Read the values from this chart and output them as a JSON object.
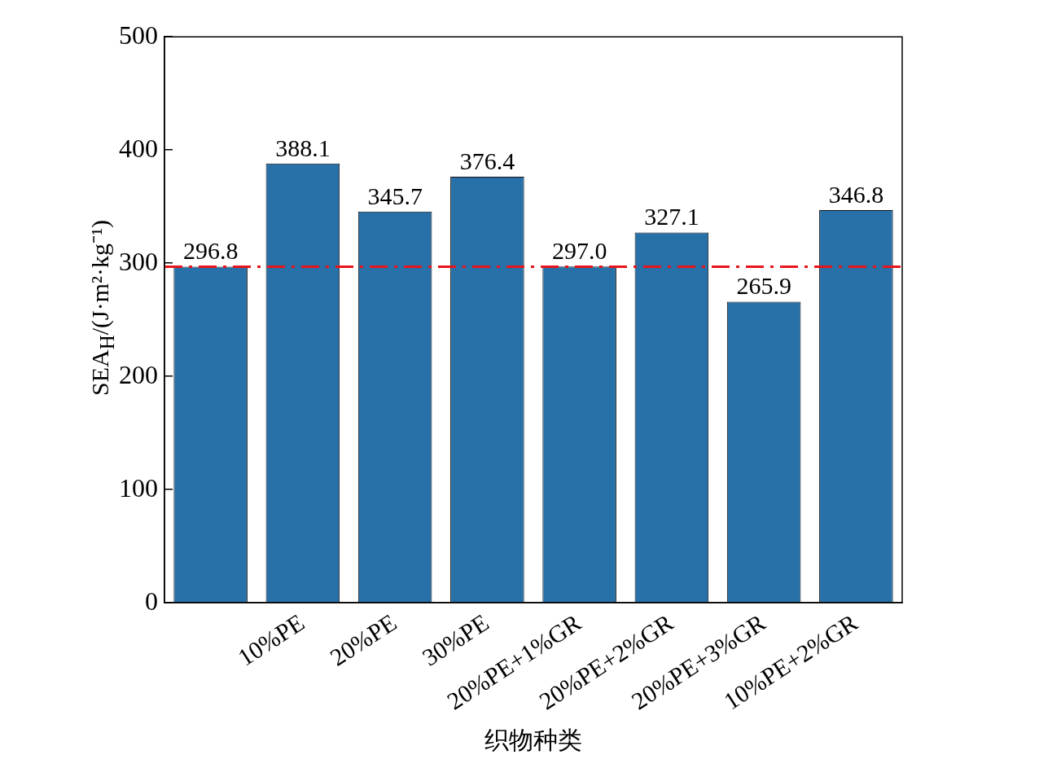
{
  "chart_data": {
    "type": "bar",
    "xlabel": "织物种类",
    "ylabel": "SEA$_{H}$/(J·m²·kg⁻¹)",
    "categories": [
      null,
      "10%PE",
      "20%PE",
      "30%PE",
      "20%PE+1%GR",
      "20%PE+2%GR",
      "20%PE+3%GR",
      "10%PE+2%GR"
    ],
    "values": [
      296.8,
      388.1,
      345.7,
      376.4,
      297.0,
      327.1,
      265.9,
      346.8
    ],
    "value_labels": [
      "296.8",
      "388.1",
      "345.7",
      "376.4",
      "297.0",
      "327.1",
      "265.9",
      "346.8"
    ],
    "color": "#2870a8",
    "ylim": [
      0,
      500
    ],
    "yticks": [
      0,
      100,
      200,
      300,
      400,
      500
    ],
    "grid": false,
    "legend": false,
    "ref_lines": [
      {
        "axis": "y",
        "value": 296.8,
        "color": "#e8141b",
        "line_style": "dashed"
      }
    ]
  }
}
